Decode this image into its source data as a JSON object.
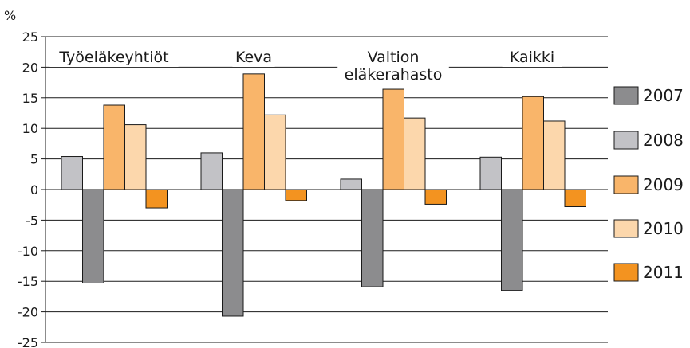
{
  "chart_data": {
    "type": "bar",
    "ylabel": "%",
    "ylim": [
      -25,
      25
    ],
    "yticks": [
      25,
      20,
      15,
      10,
      5,
      0,
      -5,
      -10,
      -15,
      -20,
      -25
    ],
    "grid": true,
    "legend_position": "right",
    "categories": [
      [
        "Työeläkeyhtiöt"
      ],
      [
        "Keva"
      ],
      [
        "Valtion",
        "eläkerahasto"
      ],
      [
        "Kaikki"
      ]
    ],
    "series": [
      {
        "name": "2007",
        "color": "#8c8c8e",
        "values": [
          -15.3,
          -20.7,
          -15.9,
          -16.5
        ]
      },
      {
        "name": "2008",
        "color": "#c2c2c6",
        "values": [
          5.4,
          6.0,
          1.7,
          5.3
        ]
      },
      {
        "name": "2009",
        "color": "#f9b56a",
        "values": [
          13.8,
          18.9,
          16.4,
          15.2
        ]
      },
      {
        "name": "2010",
        "color": "#fcd7ac",
        "values": [
          10.6,
          12.2,
          11.7,
          11.2
        ]
      },
      {
        "name": "2011",
        "color": "#f39320",
        "values": [
          -3.0,
          -1.8,
          -2.4,
          -2.8
        ]
      }
    ],
    "series_order_in_group": [
      "2008",
      "2007",
      "2009",
      "2010",
      "2011"
    ]
  }
}
